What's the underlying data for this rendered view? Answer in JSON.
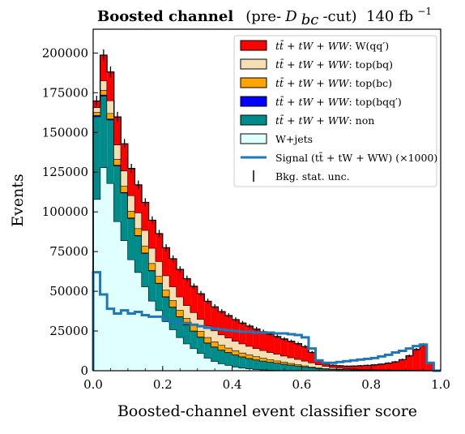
{
  "chart_data": {
    "type": "stacked-step-histogram",
    "title": "Boosted channel",
    "title_suffix_prefix": "(pre-",
    "title_suffix_sym": "D",
    "title_suffix_sub": "bc",
    "title_suffix_post": "-cut)",
    "lumi": "140 fb",
    "lumi_sup": "−1",
    "xlabel": "Boosted-channel event classifier score",
    "ylabel": "Events",
    "xlim": [
      0.0,
      1.0
    ],
    "ylim": [
      0,
      215000
    ],
    "xticks": [
      0.0,
      0.2,
      0.4,
      0.6,
      0.8,
      1.0
    ],
    "xtick_labels": [
      "0.0",
      "0.2",
      "0.4",
      "0.6",
      "0.8",
      "1.0"
    ],
    "yticks": [
      0,
      25000,
      50000,
      75000,
      100000,
      125000,
      150000,
      175000,
      200000
    ],
    "ytick_labels": [
      "0",
      "25000",
      "50000",
      "75000",
      "100000",
      "125000",
      "150000",
      "175000",
      "200000"
    ],
    "bin_edges": [
      0.0,
      0.02,
      0.04,
      0.06,
      0.08,
      0.1,
      0.12,
      0.14,
      0.16,
      0.18,
      0.2,
      0.22,
      0.24,
      0.26,
      0.28,
      0.3,
      0.32,
      0.34,
      0.36,
      0.38,
      0.4,
      0.42,
      0.44,
      0.46,
      0.48,
      0.5,
      0.52,
      0.54,
      0.56,
      0.58,
      0.6,
      0.62,
      0.64,
      0.66,
      0.68,
      0.7,
      0.72,
      0.74,
      0.76,
      0.78,
      0.8,
      0.82,
      0.84,
      0.86,
      0.88,
      0.9,
      0.92,
      0.94,
      0.96,
      0.98,
      1.0
    ],
    "series": [
      {
        "name": "W+jets",
        "fill": "#e0ffff",
        "legend_label": "W+jets",
        "values": [
          108000,
          128000,
          118000,
          94000,
          82000,
          70000,
          62000,
          53000,
          44000,
          38000,
          31000,
          26000,
          21000,
          17000,
          14000,
          11000,
          8000,
          6000,
          4500,
          3500,
          2500,
          1800,
          1300,
          900,
          650,
          450,
          350,
          250,
          180,
          130,
          90,
          60,
          40,
          30,
          20,
          15,
          10,
          10,
          10,
          10,
          10,
          10,
          10,
          10,
          10,
          10,
          10,
          10,
          10,
          0
        ]
      },
      {
        "name": "ttbar+tW+WW non",
        "fill": "#008b8b",
        "legend_prefix": "tt̄ + tW + WW",
        "legend_suffix": ": non",
        "values": [
          52000,
          45000,
          40000,
          35000,
          30000,
          26000,
          23000,
          21000,
          19000,
          17000,
          15500,
          14000,
          13000,
          12000,
          11000,
          10200,
          9500,
          9000,
          8500,
          8000,
          7500,
          7000,
          6500,
          6000,
          5500,
          5000,
          4500,
          4000,
          3500,
          3000,
          2500,
          2000,
          1500,
          1200,
          1000,
          900,
          800,
          700,
          600,
          500,
          450,
          400,
          350,
          300,
          250,
          200,
          150,
          100,
          50,
          0
        ]
      },
      {
        "name": "ttbar+tW+WW top(bqq')",
        "fill": "#0000ff",
        "legend_prefix": "tt̄ + tW + WW",
        "legend_suffix": ": top(bqq′)",
        "values": [
          800,
          700,
          600,
          500,
          400,
          350,
          300,
          280,
          260,
          240,
          220,
          200,
          190,
          180,
          170,
          160,
          150,
          140,
          130,
          120,
          110,
          100,
          90,
          80,
          70,
          60,
          50,
          40,
          30,
          20,
          15,
          10,
          10,
          10,
          10,
          10,
          10,
          10,
          10,
          10,
          10,
          10,
          10,
          10,
          10,
          10,
          10,
          10,
          10,
          0
        ]
      },
      {
        "name": "ttbar+tW+WW top(bc)",
        "fill": "#ffa500",
        "legend_prefix": "tt̄ + tW + WW",
        "legend_suffix": ": top(bc)",
        "values": [
          2000,
          3000,
          3500,
          3800,
          4000,
          4200,
          4300,
          4400,
          4400,
          4300,
          4200,
          4100,
          4000,
          3900,
          3800,
          3600,
          3400,
          3200,
          3000,
          2800,
          2600,
          2400,
          2200,
          2000,
          1800,
          1600,
          1400,
          1200,
          1000,
          800,
          600,
          400,
          300,
          200,
          150,
          100,
          80,
          60,
          40,
          30,
          20,
          20,
          20,
          20,
          20,
          20,
          20,
          20,
          10,
          0
        ]
      },
      {
        "name": "ttbar+tW+WW top(bq)",
        "fill": "#f5deb3",
        "legend_prefix": "tt̄ + tW + WW",
        "legend_suffix": ": top(bq)",
        "values": [
          3000,
          6000,
          8000,
          9000,
          9500,
          9800,
          9900,
          9800,
          9600,
          9300,
          9000,
          8700,
          8400,
          8100,
          7800,
          7500,
          7200,
          6900,
          6600,
          6300,
          6000,
          5700,
          5400,
          5100,
          4800,
          4500,
          4200,
          3900,
          3600,
          3300,
          3000,
          2600,
          2000,
          1500,
          1000,
          700,
          500,
          400,
          300,
          250,
          200,
          200,
          200,
          200,
          200,
          200,
          200,
          200,
          100,
          0
        ]
      },
      {
        "name": "ttbar+tW+WW W(qq')",
        "fill": "#ff0000",
        "legend_prefix": "tt̄ + tW + WW",
        "legend_suffix": ": W(qq′)",
        "values": [
          4000,
          16000,
          18000,
          17500,
          17000,
          17000,
          17500,
          17500,
          17500,
          17500,
          17500,
          17500,
          17200,
          16800,
          16400,
          16000,
          15500,
          15000,
          14500,
          14000,
          13500,
          13000,
          12600,
          12200,
          11800,
          11400,
          11000,
          10600,
          10200,
          9800,
          9000,
          6500,
          2500,
          1500,
          1300,
          1400,
          1500,
          1800,
          2200,
          2600,
          3000,
          3500,
          4200,
          5000,
          6500,
          9000,
          13000,
          16000,
          5000,
          0
        ]
      }
    ],
    "signal": {
      "name": "Signal (ttbar+tW+WW) (x1000)",
      "color": "#1f77b4",
      "legend_prefix": "Signal (tt̄ + tW + WW) (×1000)",
      "values": [
        62000,
        48000,
        39000,
        36000,
        38000,
        36000,
        37000,
        35000,
        34000,
        34000,
        32000,
        31000,
        30000,
        30000,
        29000,
        28000,
        27000,
        26500,
        26000,
        25500,
        25000,
        24500,
        24500,
        24000,
        24000,
        24000,
        23500,
        23500,
        23000,
        22500,
        21000,
        14000,
        6500,
        5000,
        5000,
        5500,
        6000,
        6500,
        7000,
        7500,
        8000,
        9000,
        10000,
        11500,
        12500,
        14000,
        15500,
        16500,
        5000,
        0
      ]
    },
    "stat_unc": {
      "legend_label": "Bkg. stat. unc.",
      "color": "#000000"
    },
    "legend_position": "upper-right",
    "grid": false
  }
}
